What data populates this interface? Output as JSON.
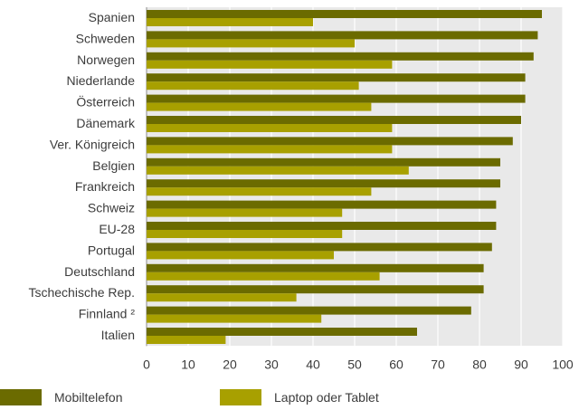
{
  "chart_data": {
    "type": "bar",
    "orientation": "horizontal",
    "categories": [
      "Spanien",
      "Schweden",
      "Norwegen",
      "Niederlande",
      "Österreich",
      "Dänemark",
      "Ver. Königreich",
      "Belgien",
      "Frankreich",
      "Schweiz",
      "EU-28",
      "Portugal",
      "Deutschland",
      "Tschechische Rep.",
      "Finnland ²",
      "Italien"
    ],
    "series": [
      {
        "name": "Mobiltelefon",
        "color": "#6b6b00",
        "values": [
          95,
          94,
          93,
          91,
          91,
          90,
          88,
          85,
          85,
          84,
          84,
          83,
          81,
          81,
          78,
          65
        ]
      },
      {
        "name": "Laptop oder Tablet",
        "color": "#a8a000",
        "values": [
          40,
          50,
          59,
          51,
          54,
          59,
          59,
          63,
          54,
          47,
          47,
          45,
          56,
          36,
          42,
          19
        ]
      }
    ],
    "xlim": [
      0,
      100
    ],
    "xticks": [
      "0",
      "10",
      "20",
      "30",
      "40",
      "50",
      "60",
      "70",
      "80",
      "90",
      "100"
    ],
    "grid": true,
    "legend_position": "bottom"
  }
}
